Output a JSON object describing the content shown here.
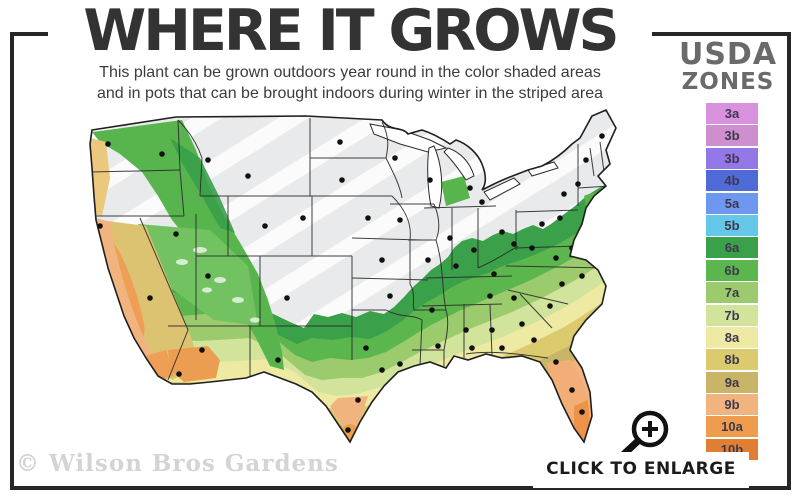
{
  "header": {
    "title": "WHERE IT GROWS",
    "subtitle_line1": "This plant can be grown outdoors year round in the color shaded areas",
    "subtitle_line2": "and in pots that can be brought indoors during winter in the striped area"
  },
  "legend": {
    "title_line1": "USDA",
    "title_line2": "ZONES",
    "zones": [
      {
        "label": "3a",
        "color": "#d791dd"
      },
      {
        "label": "3b",
        "color": "#cf8fcf"
      },
      {
        "label": "3b",
        "color": "#9478e8"
      },
      {
        "label": "4b",
        "color": "#4f6bd8"
      },
      {
        "label": "5a",
        "color": "#6e97ef"
      },
      {
        "label": "5b",
        "color": "#66c8e8"
      },
      {
        "label": "6a",
        "color": "#3ba04a"
      },
      {
        "label": "6b",
        "color": "#5cb64e"
      },
      {
        "label": "7a",
        "color": "#9ccb6e"
      },
      {
        "label": "7b",
        "color": "#d2e39b"
      },
      {
        "label": "8a",
        "color": "#eeeaa4"
      },
      {
        "label": "8b",
        "color": "#dcca6e"
      },
      {
        "label": "9a",
        "color": "#c9b468"
      },
      {
        "label": "9b",
        "color": "#f2b47e"
      },
      {
        "label": "10a",
        "color": "#ee9c4e"
      },
      {
        "label": "10b",
        "color": "#e07f33"
      }
    ]
  },
  "footer": {
    "watermark": "© Wilson Bros Gardens",
    "enlarge_label": "CLICK TO ENLARGE",
    "zoom_icon": "magnifying-glass-plus"
  }
}
